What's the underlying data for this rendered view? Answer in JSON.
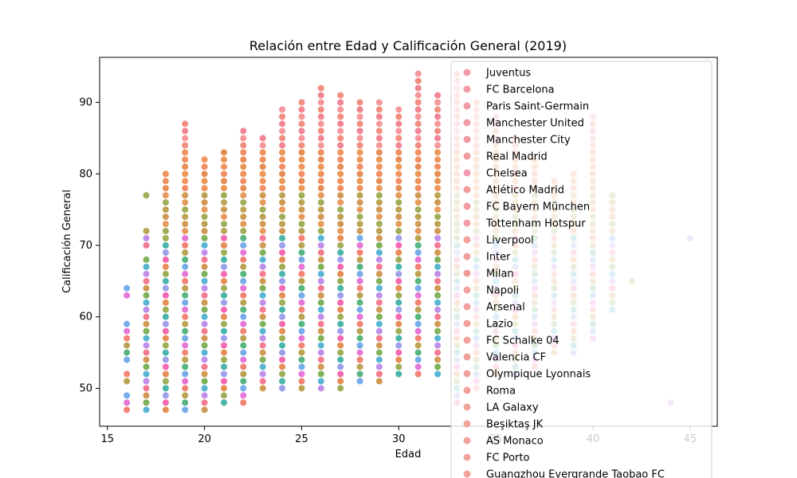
{
  "chart_data": {
    "type": "scatter",
    "title": "Relación entre Edad y Calificación General (2019)",
    "xlabel": "Edad",
    "ylabel": "Calificación General",
    "xlim": [
      14.6,
      46.4
    ],
    "ylim": [
      44.7,
      96.3
    ],
    "xticks": [
      15,
      20,
      25,
      30,
      35,
      40,
      45
    ],
    "yticks": [
      50,
      60,
      70,
      80,
      90
    ],
    "grid": false,
    "legend_position": "right",
    "legend": [
      {
        "name": "Juventus",
        "color": "#f08aa0"
      },
      {
        "name": "FC Barcelona",
        "color": "#f08a98"
      },
      {
        "name": "Paris Saint-Germain",
        "color": "#f08a92"
      },
      {
        "name": "Manchester United",
        "color": "#f0889a"
      },
      {
        "name": "Manchester City",
        "color": "#f08894"
      },
      {
        "name": "Real Madrid",
        "color": "#f08a8e"
      },
      {
        "name": "Chelsea",
        "color": "#f0889c"
      },
      {
        "name": "Atlético Madrid",
        "color": "#f08c8a"
      },
      {
        "name": "FC Bayern München",
        "color": "#f08a90"
      },
      {
        "name": "Tottenham Hotspur",
        "color": "#f08c96"
      },
      {
        "name": "Liverpool",
        "color": "#f08e8c"
      },
      {
        "name": "Inter",
        "color": "#f08c8c"
      },
      {
        "name": "Milan",
        "color": "#f08a8a"
      },
      {
        "name": "Napoli",
        "color": "#f0908e"
      },
      {
        "name": "Arsenal",
        "color": "#f08e90"
      },
      {
        "name": "Lazio",
        "color": "#f09088"
      },
      {
        "name": "FC Schalke 04",
        "color": "#f0928a"
      },
      {
        "name": "Valencia CF",
        "color": "#f09088"
      },
      {
        "name": "Olympique Lyonnais",
        "color": "#f0928c"
      },
      {
        "name": "Roma",
        "color": "#f09088"
      },
      {
        "name": "LA Galaxy",
        "color": "#f0948a"
      },
      {
        "name": "Beşiktaş JK",
        "color": "#f09488"
      },
      {
        "name": "AS Monaco",
        "color": "#f0928e"
      },
      {
        "name": "FC Porto",
        "color": "#f09088"
      },
      {
        "name": "Guangzhou Evergrande Taobao FC",
        "color": "#f09486"
      }
    ],
    "range_by_age": {
      "16": [
        47,
        64
      ],
      "17": [
        47,
        77
      ],
      "18": [
        47,
        80
      ],
      "19": [
        47,
        87
      ],
      "20": [
        47,
        82
      ],
      "21": [
        48,
        83
      ],
      "22": [
        48,
        86
      ],
      "23": [
        50,
        85
      ],
      "24": [
        50,
        89
      ],
      "25": [
        50,
        90
      ],
      "26": [
        50,
        92
      ],
      "27": [
        50,
        91
      ],
      "28": [
        51,
        90
      ],
      "29": [
        51,
        90
      ],
      "30": [
        52,
        89
      ],
      "31": [
        52,
        94
      ],
      "32": [
        52,
        91
      ],
      "33": [
        48,
        94
      ],
      "34": [
        50,
        90
      ],
      "35": [
        52,
        88
      ],
      "36": [
        52,
        85
      ],
      "37": [
        53,
        82
      ],
      "38": [
        55,
        79
      ],
      "39": [
        55,
        80
      ],
      "40": [
        57,
        88
      ],
      "41": [
        61,
        77
      ],
      "42": [
        65,
        65
      ],
      "44": [
        48,
        48
      ],
      "45": [
        71,
        71
      ]
    },
    "sparse_ages": {
      "16": [
        47,
        48,
        49,
        51,
        52,
        54,
        55,
        56,
        57,
        58,
        59,
        63,
        64
      ],
      "17": [
        47,
        48,
        49,
        50,
        51,
        52,
        53,
        54,
        55,
        56,
        57,
        58,
        59,
        60,
        61,
        62,
        63,
        64,
        65,
        66,
        67,
        68,
        70,
        71,
        72,
        77
      ],
      "42": [
        65
      ],
      "44": [
        48
      ],
      "45": [
        71
      ]
    },
    "palette": [
      "#f24fa3",
      "#e05fd0",
      "#b57be6",
      "#8c8fe8",
      "#5f9ee8",
      "#3ba8cc",
      "#2aa89c",
      "#3aa86a",
      "#6aa43c",
      "#8fa03a",
      "#b09335",
      "#c98836",
      "#e27a38",
      "#f06e5e",
      "#f2657f"
    ]
  }
}
